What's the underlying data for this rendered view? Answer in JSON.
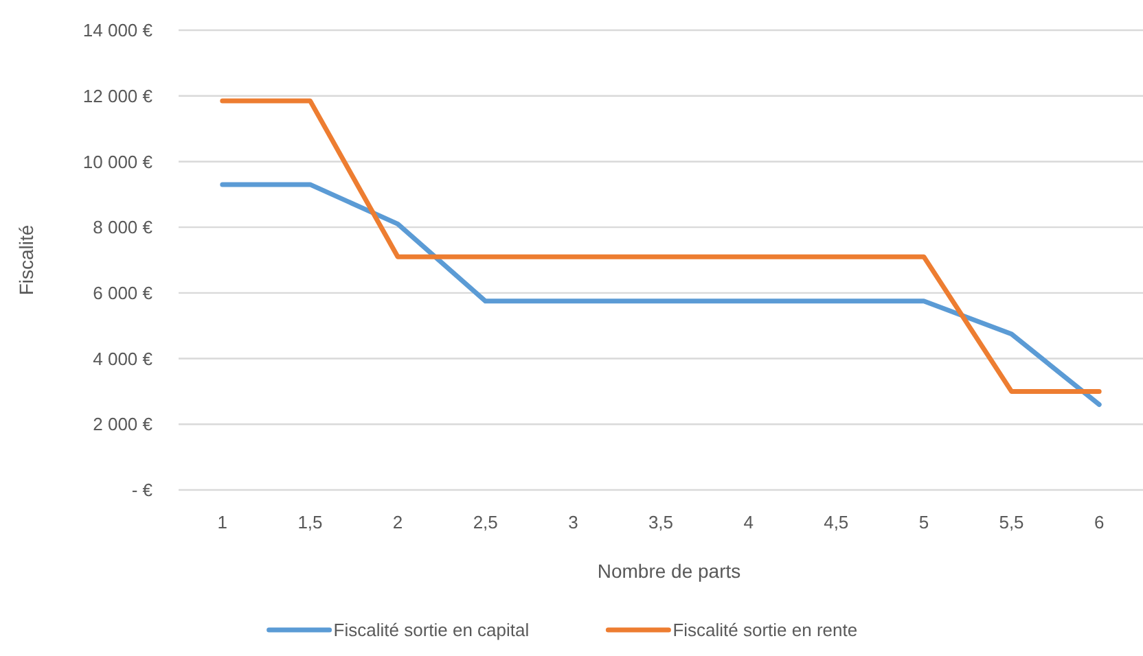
{
  "chart_data": {
    "type": "line",
    "xlabel": "Nombre de parts",
    "ylabel": "Fiscalité",
    "categories": [
      "1",
      "1,5",
      "2",
      "2,5",
      "3",
      "3,5",
      "4",
      "4,5",
      "5",
      "5,5",
      "6"
    ],
    "series": [
      {
        "name": "Fiscalité sortie en capital",
        "color": "#5b9bd5",
        "values": [
          9300,
          9300,
          8100,
          5750,
          5750,
          5750,
          5750,
          5750,
          5750,
          4750,
          2600
        ]
      },
      {
        "name": "Fiscalité sortie en rente",
        "color": "#ed7d31",
        "values": [
          11850,
          11850,
          7100,
          7100,
          7100,
          7100,
          7100,
          7100,
          7100,
          3000,
          3000
        ]
      }
    ],
    "ylim": [
      0,
      14000
    ],
    "yticks": [
      {
        "value": 0,
        "label": "-  €"
      },
      {
        "value": 2000,
        "label": "2 000 €"
      },
      {
        "value": 4000,
        "label": "4 000 €"
      },
      {
        "value": 6000,
        "label": "6 000 €"
      },
      {
        "value": 8000,
        "label": "8 000 €"
      },
      {
        "value": 10000,
        "label": "10 000 €"
      },
      {
        "value": 12000,
        "label": "12 000 €"
      },
      {
        "value": 14000,
        "label": "14 000 €"
      }
    ],
    "grid": "y",
    "legend": "bottom",
    "line_style": "solid"
  }
}
